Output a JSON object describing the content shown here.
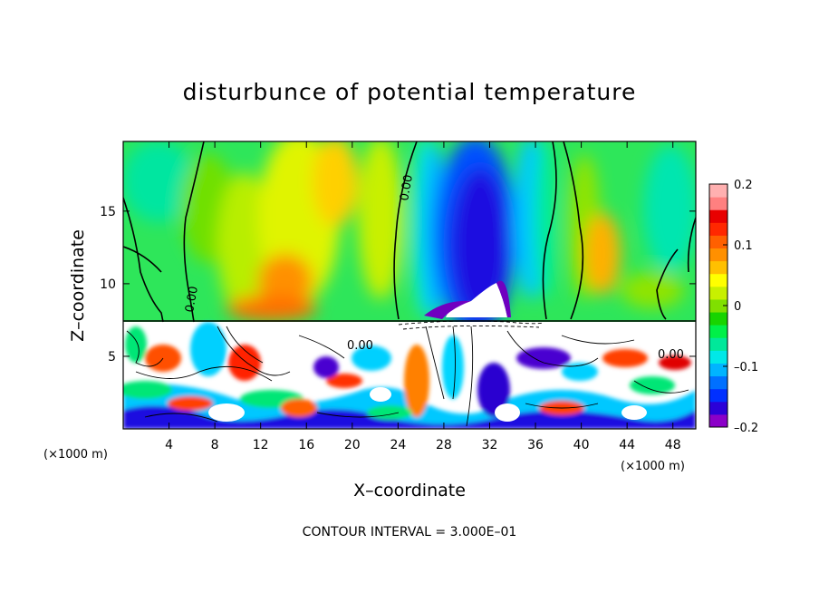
{
  "chart_data": {
    "type": "heatmap",
    "title": "disturbunce of potential temperature",
    "xlabel": "X–coordinate",
    "ylabel": "Z–coordinate",
    "x_unit": "(×1000 m)",
    "x_unit_right": "(×1000 m)",
    "x_ticks": [
      4,
      8,
      12,
      16,
      20,
      24,
      28,
      32,
      36,
      40,
      44,
      48
    ],
    "x_tick_labels": [
      "4",
      "8",
      "12",
      "16",
      "20",
      "24",
      "28",
      "32",
      "36",
      "40",
      "44",
      "48"
    ],
    "xlim": [
      0,
      50
    ],
    "y_ticks": [
      5,
      10,
      15
    ],
    "y_tick_labels": [
      "5",
      "10",
      "15"
    ],
    "ylim": [
      0,
      19.8
    ],
    "colorbar": {
      "range": [
        -0.2,
        0.2
      ],
      "tick_values": [
        0.2,
        0.1,
        0,
        -0.1,
        -0.2
      ],
      "tick_labels": [
        "0.2",
        "0.1",
        "0",
        "–0.1",
        "–0.2"
      ],
      "colors": [
        "#8b00c8",
        "#2b00d8",
        "#0030ff",
        "#0070ff",
        "#00b4ff",
        "#00e8e8",
        "#00e89a",
        "#00f048",
        "#18d400",
        "#80e000",
        "#c8f000",
        "#ffff00",
        "#ffc000",
        "#ff9000",
        "#ff6000",
        "#ff2800",
        "#e80000",
        "#ff8080",
        "#ffb0b0"
      ]
    },
    "contour_labels": [
      "0.00",
      "0.00",
      "0.00",
      "0.00"
    ],
    "contour_interval_text": "CONTOUR INTERVAL = 3.000E–01"
  }
}
